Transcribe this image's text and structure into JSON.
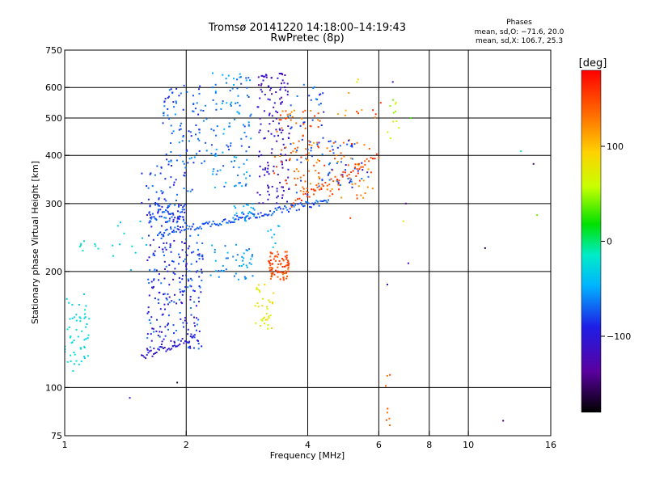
{
  "chart_data": {
    "type": "scatter",
    "title": "Tromsø 20141220 14:18:00–14:19:43",
    "subtitle": "RwPretec (8p)",
    "xlabel": "Frequency [MHz]",
    "ylabel": "Stationary phase Virtual Height [km]",
    "x_scale": "log",
    "y_scale": "log",
    "xlim": [
      1,
      16
    ],
    "ylim": [
      75,
      750
    ],
    "x_ticks": [
      "1",
      "2",
      "4",
      "6",
      "8",
      "10",
      "16"
    ],
    "x_tick_values": [
      1,
      2,
      4,
      6,
      8,
      10,
      16
    ],
    "y_ticks": [
      "75",
      "100",
      "200",
      "300",
      "400",
      "500",
      "600",
      "750"
    ],
    "y_tick_values": [
      75,
      100,
      200,
      300,
      400,
      500,
      600,
      750
    ],
    "grid": true,
    "annotation_header": "Phases",
    "annotation_lines": [
      "mean, sd,O: −71.6, 20.0",
      "mean, sd,X: 106.7, 25.3"
    ],
    "colorbar": {
      "label": "[deg]",
      "range": [
        -180,
        180
      ],
      "ticks": [
        "100",
        "0",
        "−100"
      ],
      "tick_values": [
        100,
        0,
        -100
      ]
    },
    "clusters": [
      {
        "x": [
          1.0,
          1.15
        ],
        "y": [
          110,
          175
        ],
        "n": 55,
        "phase": [
          -35,
          -15
        ]
      },
      {
        "x": [
          1.05,
          1.25
        ],
        "y": [
          225,
          240
        ],
        "n": 8,
        "phase": [
          -30,
          -10
        ]
      },
      {
        "x": [
          1.6,
          2.2
        ],
        "y": [
          125,
          255
        ],
        "n": 230,
        "phase": [
          -115,
          -60
        ]
      },
      {
        "x": [
          1.6,
          2.0
        ],
        "y": [
          260,
          300
        ],
        "n": 90,
        "phase": [
          -100,
          -60
        ]
      },
      {
        "x": [
          1.75,
          2.25
        ],
        "y": [
          380,
          610
        ],
        "n": 90,
        "phase": [
          -90,
          -55
        ]
      },
      {
        "x": [
          1.55,
          2.1
        ],
        "y": [
          300,
          380
        ],
        "n": 40,
        "phase": [
          -100,
          -60
        ]
      },
      {
        "x": [
          2.3,
          2.9
        ],
        "y": [
          330,
          660
        ],
        "n": 110,
        "phase": [
          -80,
          -40
        ]
      },
      {
        "x": [
          2.6,
          3.0
        ],
        "y": [
          270,
          300
        ],
        "n": 25,
        "phase": [
          -60,
          -35
        ]
      },
      {
        "x": [
          2.3,
          3.0
        ],
        "y": [
          190,
          235
        ],
        "n": 45,
        "phase": [
          -70,
          -40
        ]
      },
      {
        "x": [
          3.0,
          3.6
        ],
        "y": [
          300,
          660
        ],
        "n": 140,
        "phase": [
          -130,
          -95
        ]
      },
      {
        "x": [
          3.55,
          4.4
        ],
        "y": [
          300,
          620
        ],
        "n": 45,
        "phase": [
          -90,
          -60
        ]
      },
      {
        "x": [
          3.3,
          4.3
        ],
        "y": [
          320,
          530
        ],
        "n": 80,
        "phase": [
          120,
          160
        ]
      },
      {
        "x": [
          4.0,
          5.8
        ],
        "y": [
          305,
          440
        ],
        "n": 70,
        "phase": [
          110,
          160
        ]
      },
      {
        "x": [
          4.3,
          5.8
        ],
        "y": [
          330,
          440
        ],
        "n": 45,
        "phase": [
          -100,
          -60
        ]
      },
      {
        "x": [
          3.2,
          3.6
        ],
        "y": [
          190,
          225
        ],
        "n": 80,
        "phase": [
          130,
          165
        ]
      },
      {
        "x": [
          2.95,
          3.3
        ],
        "y": [
          140,
          185
        ],
        "n": 35,
        "phase": [
          55,
          95
        ]
      },
      {
        "x": [
          3.1,
          3.4
        ],
        "y": [
          230,
          270
        ],
        "n": 8,
        "phase": [
          -50,
          -30
        ]
      },
      {
        "x": [
          1.3,
          1.6
        ],
        "y": [
          200,
          270
        ],
        "n": 12,
        "phase": [
          -50,
          -20
        ]
      },
      {
        "x": [
          6.3,
          6.8
        ],
        "y": [
          420,
          560
        ],
        "n": 10,
        "phase": [
          40,
          80
        ]
      },
      {
        "x": [
          6.2,
          6.4
        ],
        "y": [
          78,
          115
        ],
        "n": 8,
        "phase": [
          110,
          150
        ]
      },
      {
        "x": [
          4.7,
          6.2
        ],
        "y": [
          500,
          640
        ],
        "n": 12,
        "phase": [
          90,
          160
        ]
      }
    ],
    "curves": [
      {
        "x": [
          1.7,
          4.5
        ],
        "y": [
          250,
          305
        ],
        "n": 130,
        "phase": [
          -90,
          -60
        ]
      },
      {
        "x": [
          1.55,
          2.1
        ],
        "y": [
          120,
          135
        ],
        "n": 40,
        "phase": [
          -120,
          -90
        ]
      },
      {
        "x": [
          3.65,
          6.0
        ],
        "y": [
          300,
          400
        ],
        "n": 45,
        "phase": [
          140,
          170
        ]
      }
    ],
    "points": [
      {
        "x": 1.9,
        "y": 103,
        "phase": -170
      },
      {
        "x": 1.45,
        "y": 94,
        "phase": -110
      },
      {
        "x": 6.5,
        "y": 620,
        "phase": -120
      },
      {
        "x": 7.0,
        "y": 300,
        "phase": -140
      },
      {
        "x": 7.1,
        "y": 210,
        "phase": -120
      },
      {
        "x": 6.3,
        "y": 185,
        "phase": -110
      },
      {
        "x": 11.0,
        "y": 230,
        "phase": -160
      },
      {
        "x": 12.2,
        "y": 82,
        "phase": -150
      },
      {
        "x": 14.5,
        "y": 380,
        "phase": -150
      },
      {
        "x": 14.8,
        "y": 280,
        "phase": 40
      },
      {
        "x": 13.5,
        "y": 410,
        "phase": -10
      },
      {
        "x": 7.2,
        "y": 500,
        "phase": 30
      },
      {
        "x": 6.9,
        "y": 270,
        "phase": 80
      },
      {
        "x": 5.3,
        "y": 620,
        "phase": 60
      },
      {
        "x": 5.1,
        "y": 275,
        "phase": 150
      },
      {
        "x": 6.6,
        "y": 520,
        "phase": 50
      }
    ]
  }
}
